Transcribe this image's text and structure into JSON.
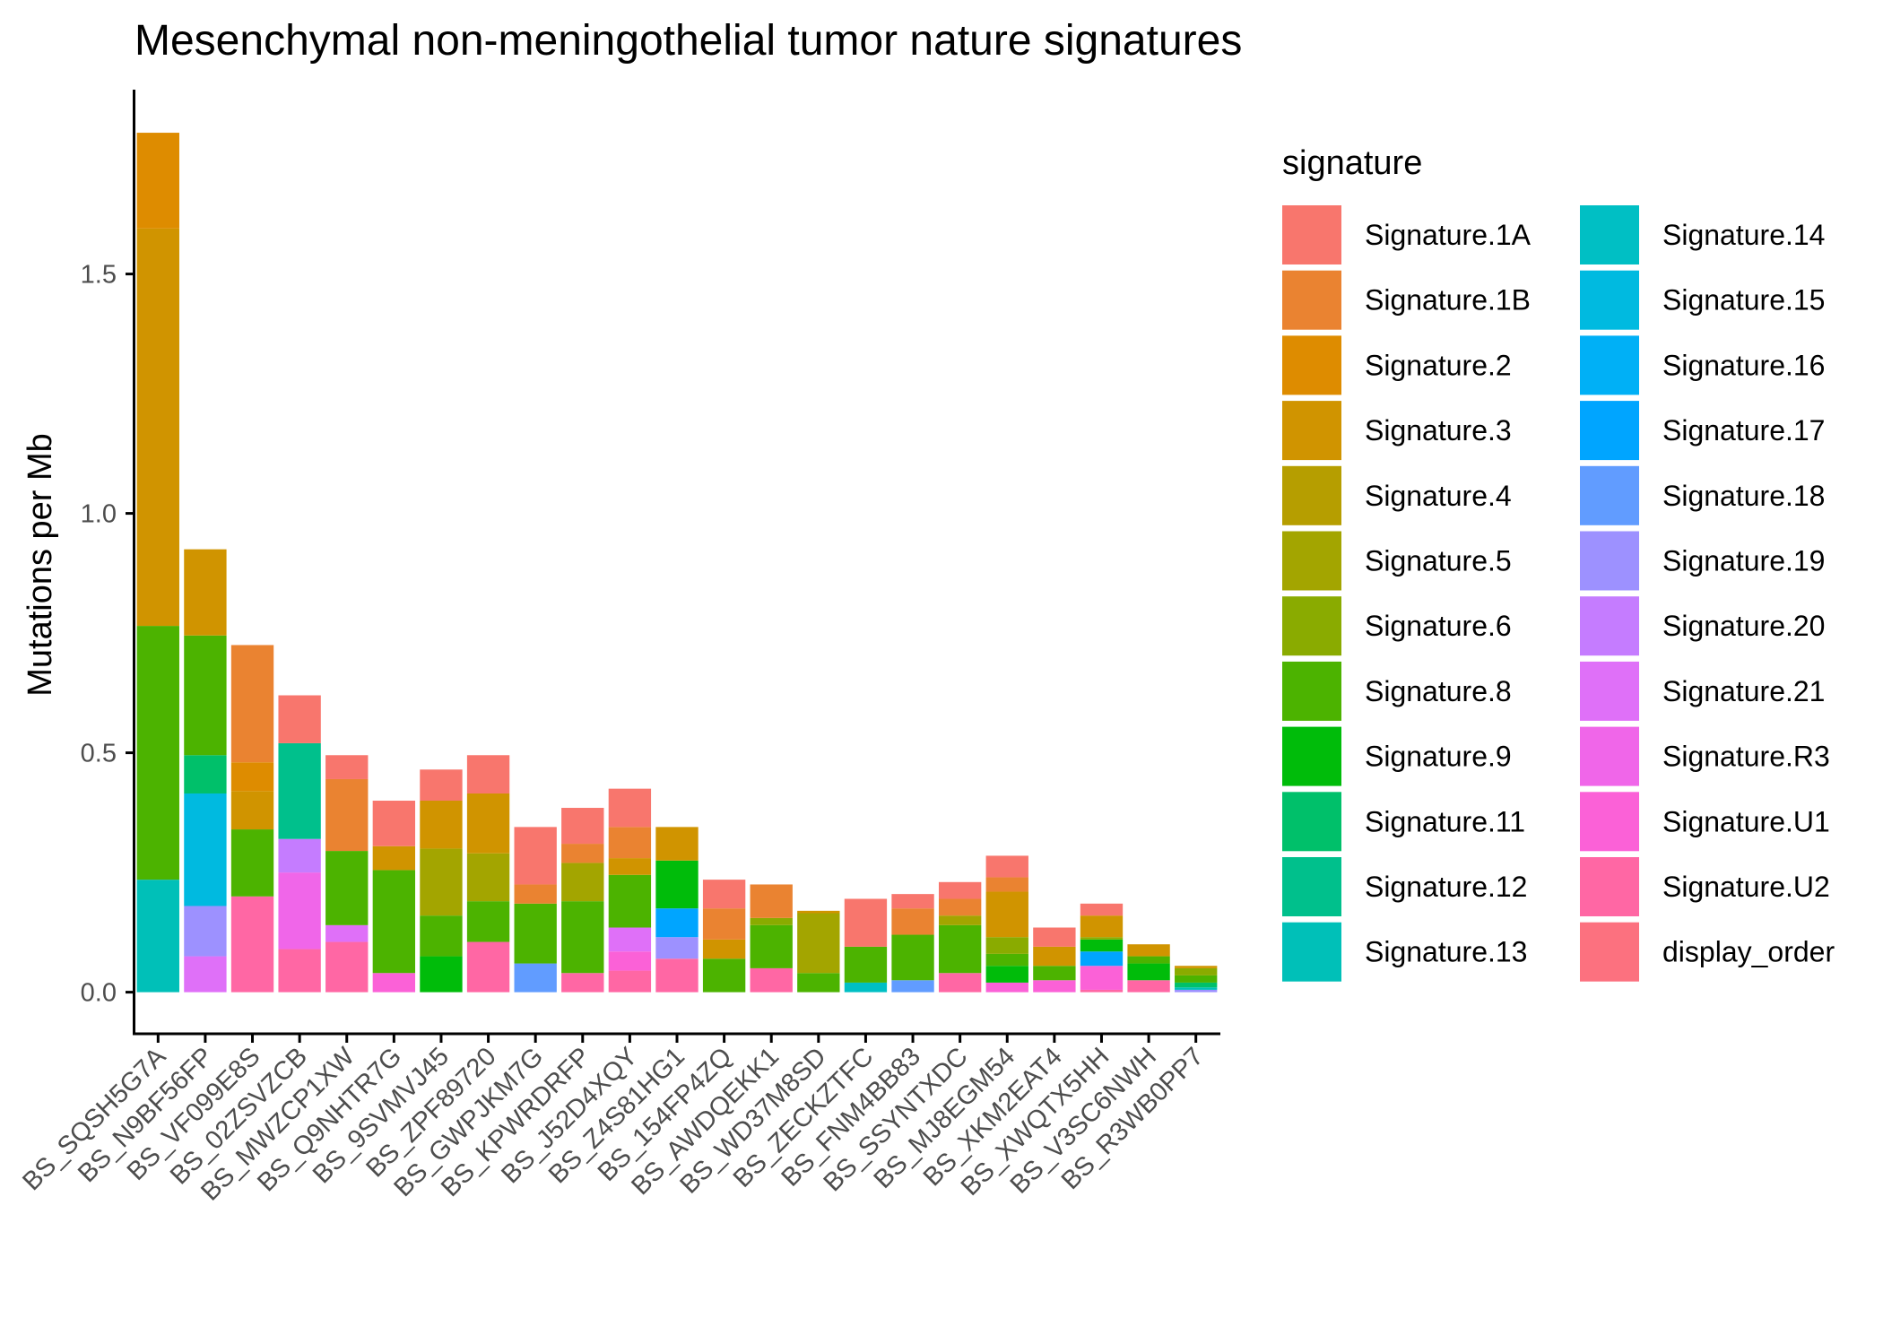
{
  "chart_data": {
    "type": "bar",
    "stacked": true,
    "title": "Mesenchymal non-meningothelial tumor nature signatures",
    "ylabel": "Mutations per Mb",
    "xlabel": "",
    "ylim": [
      -0.085,
      1.885
    ],
    "yticks": [
      0.0,
      0.5,
      1.0,
      1.5
    ],
    "ytick_labels": [
      "0.0",
      "0.5",
      "1.0",
      "1.5"
    ],
    "legend_title": "signature",
    "legend_position": "right",
    "grid": false,
    "categories": [
      "BS_SQSH5G7A",
      "BS_N9BF56FP",
      "BS_VF099E8S",
      "BS_02ZSVZCB",
      "BS_MWZCP1XW",
      "BS_Q9NHTR7G",
      "BS_9SVMVJ45",
      "BS_ZPF89720",
      "BS_GWPJKM7G",
      "BS_KPWRDRFP",
      "BS_J52D4XQY",
      "BS_Z4S81HG1",
      "BS_154FP4ZQ",
      "BS_AWDQEKK1",
      "BS_WD37M8SD",
      "BS_ZECKZTFC",
      "BS_FNM4BB83",
      "BS_SSYNTXDC",
      "BS_MJ8EGM54",
      "BS_XKM2EAT4",
      "BS_XWQTX5HH",
      "BS_V3SC6NWH",
      "BS_R3WB0PP7"
    ],
    "series": [
      {
        "name": "Signature.1A",
        "color": "#F8766D",
        "values": [
          0,
          0,
          0,
          0.1,
          0.05,
          0.095,
          0.065,
          0.08,
          0.12,
          0.075,
          0.08,
          0,
          0.06,
          0,
          0,
          0.1,
          0.03,
          0.035,
          0.045,
          0.04,
          0.025,
          0,
          0
        ]
      },
      {
        "name": "Signature.1B",
        "color": "#EA8331",
        "values": [
          0,
          0,
          0.245,
          0,
          0.15,
          0,
          0,
          0,
          0.04,
          0.04,
          0.065,
          0,
          0.065,
          0.07,
          0,
          0,
          0.055,
          0.035,
          0.03,
          0,
          0,
          0,
          0
        ]
      },
      {
        "name": "Signature.2",
        "color": "#DE8C00",
        "values": [
          0.2,
          0,
          0.06,
          0,
          0,
          0,
          0,
          0,
          0,
          0,
          0,
          0,
          0,
          0,
          0,
          0,
          0,
          0,
          0,
          0,
          0,
          0,
          0
        ]
      },
      {
        "name": "Signature.3",
        "color": "#D09400",
        "values": [
          0.83,
          0.18,
          0.08,
          0,
          0,
          0.05,
          0.1,
          0.125,
          0,
          0,
          0.035,
          0.07,
          0.04,
          0,
          0.005,
          0,
          0,
          0,
          0.095,
          0.04,
          0.045,
          0.025,
          0.005
        ]
      },
      {
        "name": "Signature.4",
        "color": "#B69E00",
        "values": [
          0,
          0,
          0,
          0,
          0,
          0,
          0,
          0,
          0,
          0,
          0,
          0,
          0,
          0,
          0,
          0,
          0,
          0,
          0,
          0,
          0,
          0,
          0
        ]
      },
      {
        "name": "Signature.5",
        "color": "#A3A500",
        "values": [
          0,
          0,
          0,
          0,
          0,
          0,
          0.14,
          0.1,
          0,
          0.08,
          0,
          0,
          0,
          0,
          0.125,
          0,
          0,
          0.02,
          0,
          0,
          0,
          0,
          0
        ]
      },
      {
        "name": "Signature.6",
        "color": "#8AAB00",
        "values": [
          0,
          0,
          0,
          0,
          0,
          0,
          0,
          0,
          0,
          0,
          0,
          0,
          0,
          0.015,
          0,
          0,
          0,
          0,
          0.035,
          0,
          0.005,
          0,
          0.015
        ]
      },
      {
        "name": "Signature.8",
        "color": "#4CB300",
        "values": [
          0.53,
          0.25,
          0.14,
          0,
          0.155,
          0.215,
          0.085,
          0.085,
          0.125,
          0.15,
          0.11,
          0,
          0.07,
          0.09,
          0.04,
          0.075,
          0.095,
          0.1,
          0.025,
          0.03,
          0,
          0.015,
          0.015
        ]
      },
      {
        "name": "Signature.9",
        "color": "#00BC0A",
        "values": [
          0,
          0,
          0,
          0,
          0,
          0,
          0.075,
          0,
          0,
          0,
          0,
          0.1,
          0,
          0,
          0,
          0,
          0,
          0,
          0.035,
          0,
          0.025,
          0.035,
          0
        ]
      },
      {
        "name": "Signature.11",
        "color": "#00C06A",
        "values": [
          0,
          0.08,
          0,
          0,
          0,
          0,
          0,
          0,
          0,
          0,
          0,
          0,
          0,
          0,
          0,
          0,
          0,
          0,
          0,
          0,
          0,
          0,
          0.01
        ]
      },
      {
        "name": "Signature.12",
        "color": "#00C08C",
        "values": [
          0,
          0,
          0,
          0.2,
          0,
          0,
          0,
          0,
          0,
          0,
          0,
          0,
          0,
          0,
          0,
          0,
          0,
          0,
          0,
          0,
          0,
          0,
          0
        ]
      },
      {
        "name": "Signature.13",
        "color": "#00C0B8",
        "values": [
          0.235,
          0,
          0,
          0,
          0,
          0,
          0,
          0,
          0,
          0,
          0,
          0,
          0,
          0,
          0,
          0,
          0,
          0,
          0,
          0,
          0,
          0,
          0.005
        ]
      },
      {
        "name": "Signature.14",
        "color": "#00BFC4",
        "values": [
          0,
          0,
          0,
          0,
          0,
          0,
          0,
          0,
          0,
          0,
          0,
          0,
          0,
          0,
          0,
          0.02,
          0,
          0,
          0,
          0,
          0,
          0,
          0
        ]
      },
      {
        "name": "Signature.15",
        "color": "#00BAE0",
        "values": [
          0,
          0.235,
          0,
          0,
          0,
          0,
          0,
          0,
          0,
          0,
          0,
          0,
          0,
          0,
          0,
          0,
          0,
          0,
          0,
          0,
          0,
          0,
          0
        ]
      },
      {
        "name": "Signature.16",
        "color": "#00B0F6",
        "values": [
          0,
          0,
          0,
          0,
          0,
          0,
          0,
          0,
          0,
          0,
          0,
          0,
          0,
          0,
          0,
          0,
          0,
          0,
          0,
          0,
          0,
          0,
          0
        ]
      },
      {
        "name": "Signature.17",
        "color": "#00A5FF",
        "values": [
          0,
          0,
          0,
          0,
          0,
          0,
          0,
          0,
          0,
          0,
          0,
          0.06,
          0,
          0,
          0,
          0,
          0,
          0,
          0,
          0,
          0.03,
          0,
          0
        ]
      },
      {
        "name": "Signature.18",
        "color": "#619CFF",
        "values": [
          0,
          0,
          0,
          0,
          0,
          0,
          0,
          0,
          0.06,
          0,
          0,
          0,
          0,
          0,
          0,
          0,
          0.025,
          0,
          0,
          0,
          0,
          0,
          0
        ]
      },
      {
        "name": "Signature.19",
        "color": "#9D91FF",
        "values": [
          0,
          0.105,
          0,
          0,
          0,
          0,
          0,
          0,
          0,
          0,
          0,
          0.045,
          0,
          0,
          0,
          0,
          0,
          0,
          0,
          0,
          0,
          0,
          0.005
        ]
      },
      {
        "name": "Signature.20",
        "color": "#C57CFF",
        "values": [
          0,
          0,
          0,
          0.07,
          0,
          0,
          0,
          0,
          0,
          0,
          0,
          0,
          0,
          0,
          0,
          0,
          0,
          0,
          0,
          0,
          0,
          0,
          0
        ]
      },
      {
        "name": "Signature.21",
        "color": "#DF70F8",
        "values": [
          0,
          0.075,
          0,
          0,
          0.035,
          0,
          0,
          0,
          0,
          0,
          0.05,
          0,
          0,
          0,
          0,
          0,
          0,
          0,
          0,
          0,
          0,
          0,
          0
        ]
      },
      {
        "name": "Signature.R3",
        "color": "#F066E9",
        "values": [
          0,
          0,
          0,
          0.16,
          0,
          0,
          0,
          0,
          0,
          0,
          0,
          0,
          0,
          0,
          0,
          0,
          0,
          0,
          0,
          0,
          0,
          0,
          0
        ]
      },
      {
        "name": "Signature.U1",
        "color": "#FB61D7",
        "values": [
          0,
          0,
          0,
          0,
          0,
          0.04,
          0,
          0,
          0,
          0,
          0.04,
          0,
          0,
          0,
          0,
          0,
          0,
          0,
          0.02,
          0.025,
          0.05,
          0,
          0
        ]
      },
      {
        "name": "Signature.U2",
        "color": "#FF67A4",
        "values": [
          0,
          0,
          0.2,
          0.09,
          0.105,
          0,
          0,
          0.105,
          0,
          0.04,
          0.045,
          0.07,
          0,
          0.05,
          0,
          0,
          0,
          0.04,
          0,
          0,
          0.005,
          0.025,
          0
        ]
      },
      {
        "name": "display_order",
        "color": "#FC717F",
        "values": [
          0,
          0,
          0,
          0,
          0,
          0,
          0,
          0,
          0,
          0,
          0,
          0,
          0,
          0,
          0,
          0,
          0,
          0,
          0,
          0,
          0,
          0,
          0
        ]
      }
    ]
  }
}
